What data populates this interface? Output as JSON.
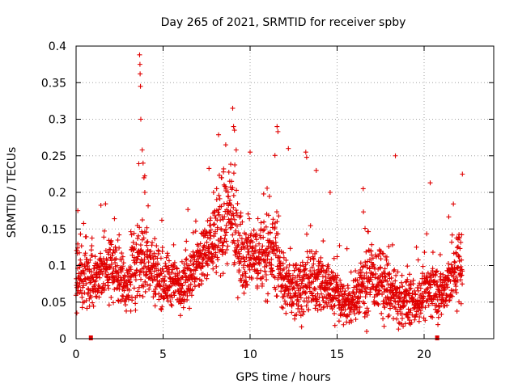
{
  "chart_data": {
    "type": "scatter",
    "title": "Day 265 of 2021, SRMTID for receiver spby",
    "xlabel": "GPS time / hours",
    "ylabel": "SRMTID / TECUs",
    "xlim": [
      0,
      24
    ],
    "ylim": [
      0,
      0.4
    ],
    "xticks": [
      0,
      5,
      10,
      15,
      20
    ],
    "xtick_labels": [
      "0",
      "5",
      "10",
      "15",
      "20"
    ],
    "yticks": [
      0,
      0.05,
      0.1,
      0.15,
      0.2,
      0.25,
      0.3,
      0.35,
      0.4
    ],
    "ytick_labels": [
      "0",
      "0.05",
      "0.1",
      "0.15",
      "0.2",
      "0.25",
      "0.3",
      "0.35",
      "0.4"
    ],
    "grid": true,
    "marker": "plus",
    "color": "#e00000",
    "data_gap_markers_x": [
      0.85,
      20.75
    ],
    "series": [
      {
        "name": "SRMTID",
        "x_start": 0.0,
        "x_end": 22.2,
        "envelope_x": [
          0,
          1,
          2,
          3,
          3.6,
          4.3,
          5,
          6,
          7,
          8,
          8.8,
          9.5,
          10.5,
          11.5,
          12,
          13,
          14,
          15,
          15.8,
          16.5,
          17.5,
          18.5,
          19.5,
          20.5,
          21,
          21.5,
          22.2
        ],
        "envelope_mid": [
          0.09,
          0.08,
          0.1,
          0.07,
          0.12,
          0.1,
          0.08,
          0.075,
          0.1,
          0.14,
          0.17,
          0.12,
          0.11,
          0.12,
          0.07,
          0.07,
          0.08,
          0.06,
          0.045,
          0.08,
          0.08,
          0.05,
          0.05,
          0.07,
          0.06,
          0.08,
          0.11
        ],
        "envelope_spread": [
          0.04,
          0.04,
          0.04,
          0.03,
          0.06,
          0.04,
          0.035,
          0.03,
          0.04,
          0.05,
          0.06,
          0.05,
          0.04,
          0.05,
          0.035,
          0.035,
          0.04,
          0.03,
          0.025,
          0.04,
          0.04,
          0.03,
          0.025,
          0.035,
          0.03,
          0.04,
          0.05
        ],
        "notable_points": [
          {
            "x": 3.65,
            "y": 0.388
          },
          {
            "x": 3.67,
            "y": 0.375
          },
          {
            "x": 3.68,
            "y": 0.362
          },
          {
            "x": 3.7,
            "y": 0.345
          },
          {
            "x": 3.72,
            "y": 0.3
          },
          {
            "x": 3.8,
            "y": 0.258
          },
          {
            "x": 3.85,
            "y": 0.24
          },
          {
            "x": 3.9,
            "y": 0.22
          },
          {
            "x": 3.95,
            "y": 0.2
          },
          {
            "x": 9.0,
            "y": 0.315
          },
          {
            "x": 9.05,
            "y": 0.29
          },
          {
            "x": 9.1,
            "y": 0.285
          },
          {
            "x": 8.6,
            "y": 0.265
          },
          {
            "x": 9.2,
            "y": 0.258
          },
          {
            "x": 10.0,
            "y": 0.255
          },
          {
            "x": 11.55,
            "y": 0.29
          },
          {
            "x": 11.6,
            "y": 0.283
          },
          {
            "x": 12.2,
            "y": 0.26
          },
          {
            "x": 13.2,
            "y": 0.255
          },
          {
            "x": 13.25,
            "y": 0.248
          },
          {
            "x": 13.8,
            "y": 0.23
          },
          {
            "x": 18.35,
            "y": 0.25
          },
          {
            "x": 20.35,
            "y": 0.213
          },
          {
            "x": 22.2,
            "y": 0.225
          },
          {
            "x": 7.9,
            "y": 0.2
          },
          {
            "x": 14.6,
            "y": 0.2
          },
          {
            "x": 16.5,
            "y": 0.205
          },
          {
            "x": 0.1,
            "y": 0.175
          },
          {
            "x": 17.7,
            "y": 0.017
          },
          {
            "x": 16.7,
            "y": 0.01
          }
        ]
      }
    ]
  }
}
